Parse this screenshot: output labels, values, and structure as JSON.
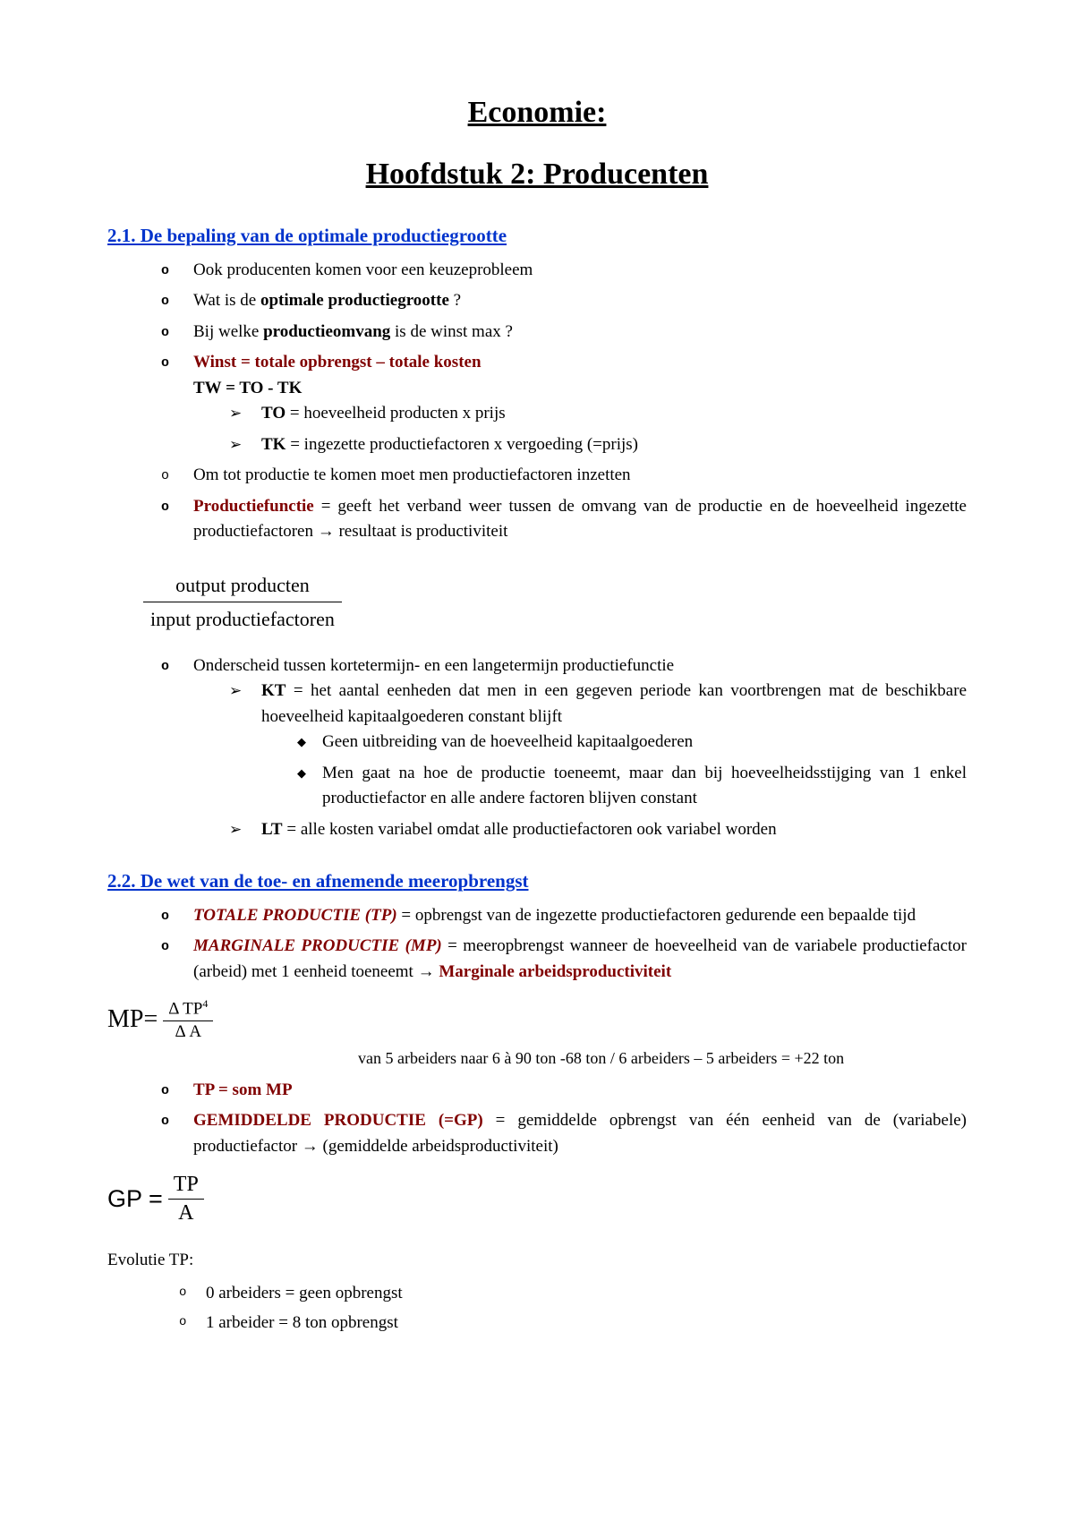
{
  "title_main": "Economie:",
  "title_chapter": "Hoofdstuk 2: Producenten",
  "section21": {
    "heading": "2.1. De bepaling van de optimale productiegrootte",
    "items": {
      "i0": "Ook producenten komen voor een keuzeprobleem",
      "i1_pre": "Wat is de ",
      "i1_bold": "optimale productiegrootte",
      "i1_post": " ?",
      "i2_pre": "Bij welke ",
      "i2_bold": "productieomvang",
      "i2_post": " is de winst max ?",
      "i3": "Winst = totale opbrengst – totale kosten",
      "i3_sub": "TW = TO - TK",
      "i3_to": "TO",
      "i3_to_desc": " = hoeveelheid producten x prijs",
      "i3_tk": "TK",
      "i3_tk_desc": " = ingezette productiefactoren x vergoeding (=prijs)",
      "i4": "Om tot productie te komen moet men productiefactoren inzetten",
      "i5_term": "Productiefunctie",
      "i5_desc": " = geeft het verband weer tussen de omvang van de productie en de hoeveelheid ingezette productiefactoren  → resultaat is productiviteit"
    },
    "fraction": {
      "top": "output producten",
      "bottom": "input productiefactoren"
    },
    "items2": {
      "i6": "Onderscheid tussen kortetermijn- en een langetermijn productiefunctie",
      "kt_label": "KT",
      "kt_desc": " = het aantal eenheden dat men in een gegeven periode kan voortbrengen mat de beschikbare hoeveelheid kapitaalgoederen constant blijft",
      "kt_d1": "Geen uitbreiding van de hoeveelheid kapitaalgoederen",
      "kt_d2": "Men gaat na hoe de productie toeneemt, maar dan bij hoeveelheidsstijging van 1 enkel productiefactor en alle andere factoren blijven constant",
      "lt_label": "LT",
      "lt_desc": " = alle kosten variabel omdat alle productiefactoren ook variabel worden"
    }
  },
  "section22": {
    "heading": "2.2. De wet van de toe- en afnemende meeropbrengst",
    "tp_label": "TOTALE PRODUCTIE (TP)",
    "tp_desc": " = opbrengst van de ingezette productiefactoren gedurende een bepaalde tijd",
    "mp_label": "MARGINALE PRODUCTIE (MP)",
    "mp_desc_pre": " = meeropbrengst wanneer de hoeveelheid van de variabele productiefactor (arbeid) met 1 eenheid toeneemt   →   ",
    "mp_desc_bold": "Marginale arbeidsproductiviteit",
    "formula_mp_left": "MP=",
    "formula_mp_num": "Δ  TP",
    "formula_mp_sup": "4",
    "formula_mp_den": "Δ  A",
    "example": "van 5 arbeiders naar 6 à 90 ton -68 ton / 6 arbeiders – 5 arbeiders = +22 ton",
    "tp_som": "TP = som MP",
    "gp_label": "GEMIDDELDE PRODUCTIE (=GP)",
    "gp_desc": " = gemiddelde opbrengst van één eenheid van de (variabele) productiefactor → (gemiddelde arbeidsproductiviteit)",
    "formula_gp_left": "GP =",
    "formula_gp_num": "TP",
    "formula_gp_den": "A",
    "evolutie_heading": "Evolutie TP:",
    "ev0": "0 arbeiders = geen opbrengst",
    "ev1": "1 arbeider = 8 ton opbrengst"
  }
}
